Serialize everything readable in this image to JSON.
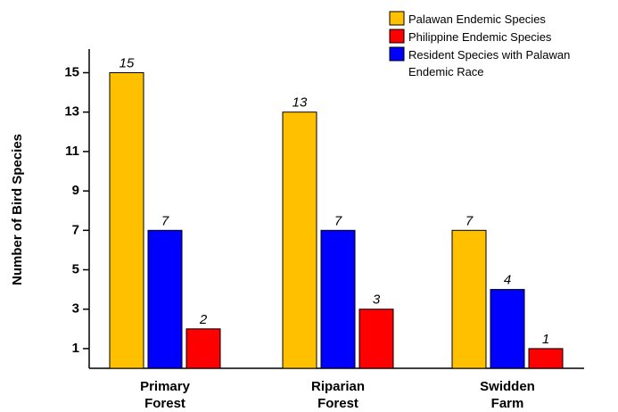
{
  "chart_data": {
    "type": "bar",
    "y_label": "Number of Bird Species",
    "categories": [
      "Primary Forest",
      "Riparian Forest",
      "Swidden Farm"
    ],
    "series": [
      {
        "name": "Palawan Endemic Species",
        "color": "#ffc000",
        "values": [
          15,
          13,
          7
        ]
      },
      {
        "name": "Philippine Endemic Species",
        "color": "#ff0000",
        "values": [
          2,
          3,
          1
        ]
      },
      {
        "name": "Resident Species with Palawan Endemic Race",
        "color": "#0000ff",
        "values": [
          7,
          7,
          4
        ]
      }
    ],
    "ylim": [
      0,
      16.2
    ],
    "yticks": [
      1,
      3,
      5,
      7,
      9,
      11,
      13,
      15
    ],
    "legend": "upper right"
  }
}
